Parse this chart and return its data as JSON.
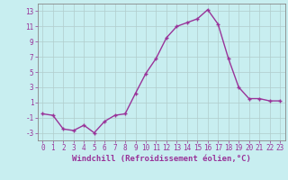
{
  "xlabel": "Windchill (Refroidissement éolien,°C)",
  "x": [
    0,
    1,
    2,
    3,
    4,
    5,
    6,
    7,
    8,
    9,
    10,
    11,
    12,
    13,
    14,
    15,
    16,
    17,
    18,
    19,
    20,
    21,
    22,
    23
  ],
  "y": [
    -0.5,
    -0.7,
    -2.5,
    -2.7,
    -2.0,
    -3.0,
    -1.5,
    -0.7,
    -0.5,
    2.2,
    4.8,
    6.8,
    9.5,
    11.0,
    11.5,
    12.0,
    13.2,
    11.3,
    6.8,
    3.0,
    1.5,
    1.5,
    1.2,
    1.2
  ],
  "line_color": "#993399",
  "marker": "+",
  "background_color": "#c8eef0",
  "grid_color": "#b0cccc",
  "ylim": [
    -4,
    14
  ],
  "yticks": [
    -3,
    -1,
    1,
    3,
    5,
    7,
    9,
    11,
    13
  ],
  "xticks": [
    0,
    1,
    2,
    3,
    4,
    5,
    6,
    7,
    8,
    9,
    10,
    11,
    12,
    13,
    14,
    15,
    16,
    17,
    18,
    19,
    20,
    21,
    22,
    23
  ],
  "tick_label_fontsize": 5.5,
  "xlabel_fontsize": 6.5,
  "line_width": 1.0,
  "marker_size": 3.5,
  "spine_color": "#888888"
}
